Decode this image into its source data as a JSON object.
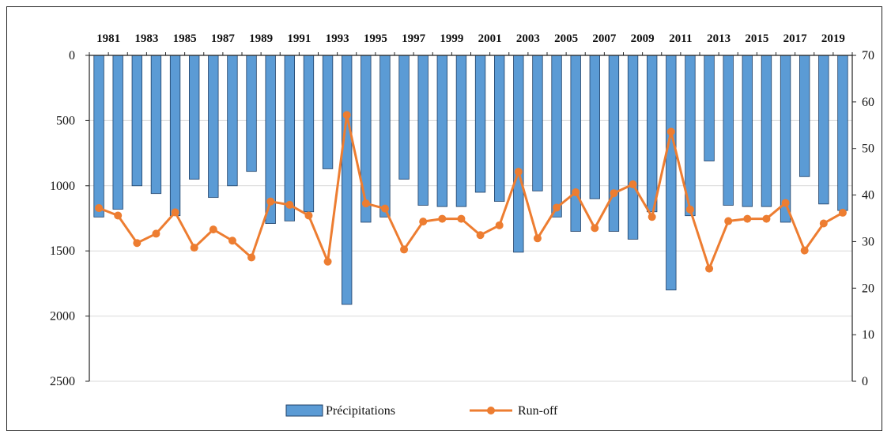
{
  "chart_data": {
    "type": "bar+line",
    "x": [
      1981,
      1982,
      1983,
      1984,
      1985,
      1986,
      1987,
      1988,
      1989,
      1990,
      1991,
      1992,
      1993,
      1994,
      1995,
      1996,
      1997,
      1998,
      1999,
      2000,
      2001,
      2002,
      2003,
      2004,
      2005,
      2006,
      2007,
      2008,
      2009,
      2010,
      2011,
      2012,
      2013,
      2014,
      2015,
      2016,
      2017,
      2018,
      2019,
      2020
    ],
    "x_tick_labels": [
      "1981",
      "1983",
      "1985",
      "1987",
      "1989",
      "1991",
      "1993",
      "1995",
      "1997",
      "1999",
      "2001",
      "2003",
      "2005",
      "2007",
      "2009",
      "2011",
      "2013",
      "2015",
      "2017",
      "2019"
    ],
    "series": [
      {
        "name": "Précipitations",
        "type": "bar",
        "axis": "left",
        "color": "#5b9bd5",
        "values": [
          1240,
          1180,
          1000,
          1060,
          1230,
          950,
          1090,
          1000,
          890,
          1290,
          1270,
          1200,
          870,
          1910,
          1280,
          1240,
          950,
          1150,
          1160,
          1160,
          1050,
          1120,
          1510,
          1040,
          1240,
          1350,
          1100,
          1350,
          1410,
          1200,
          1800,
          1230,
          810,
          1150,
          1160,
          1160,
          1280,
          930,
          1140,
          1190
        ]
      },
      {
        "name": "Run-off",
        "type": "line",
        "axis": "right",
        "color": "#ed7d31",
        "values": [
          37.2,
          35.6,
          29.7,
          31.7,
          36.3,
          28.7,
          32.6,
          30.2,
          26.6,
          38.6,
          37.9,
          35.6,
          25.7,
          57.2,
          38.2,
          37.1,
          28.3,
          34.3,
          34.9,
          34.9,
          31.4,
          33.5,
          45.0,
          30.7,
          37.3,
          40.6,
          32.9,
          40.4,
          42.3,
          35.3,
          53.6,
          36.9,
          24.2,
          34.4,
          34.9,
          34.9,
          38.3,
          28.1,
          33.9,
          36.2
        ]
      }
    ],
    "left_axis": {
      "reversed": true,
      "ylim": [
        0,
        2500
      ],
      "ticks": [
        "0",
        "500",
        "1000",
        "1500",
        "2000",
        "2500"
      ]
    },
    "right_axis": {
      "ylim": [
        0,
        70
      ],
      "ticks": [
        "70",
        "60",
        "50",
        "40",
        "30",
        "20",
        "10",
        "0"
      ]
    },
    "x_axis_position": "top",
    "grid": true,
    "legend_position": "bottom"
  }
}
